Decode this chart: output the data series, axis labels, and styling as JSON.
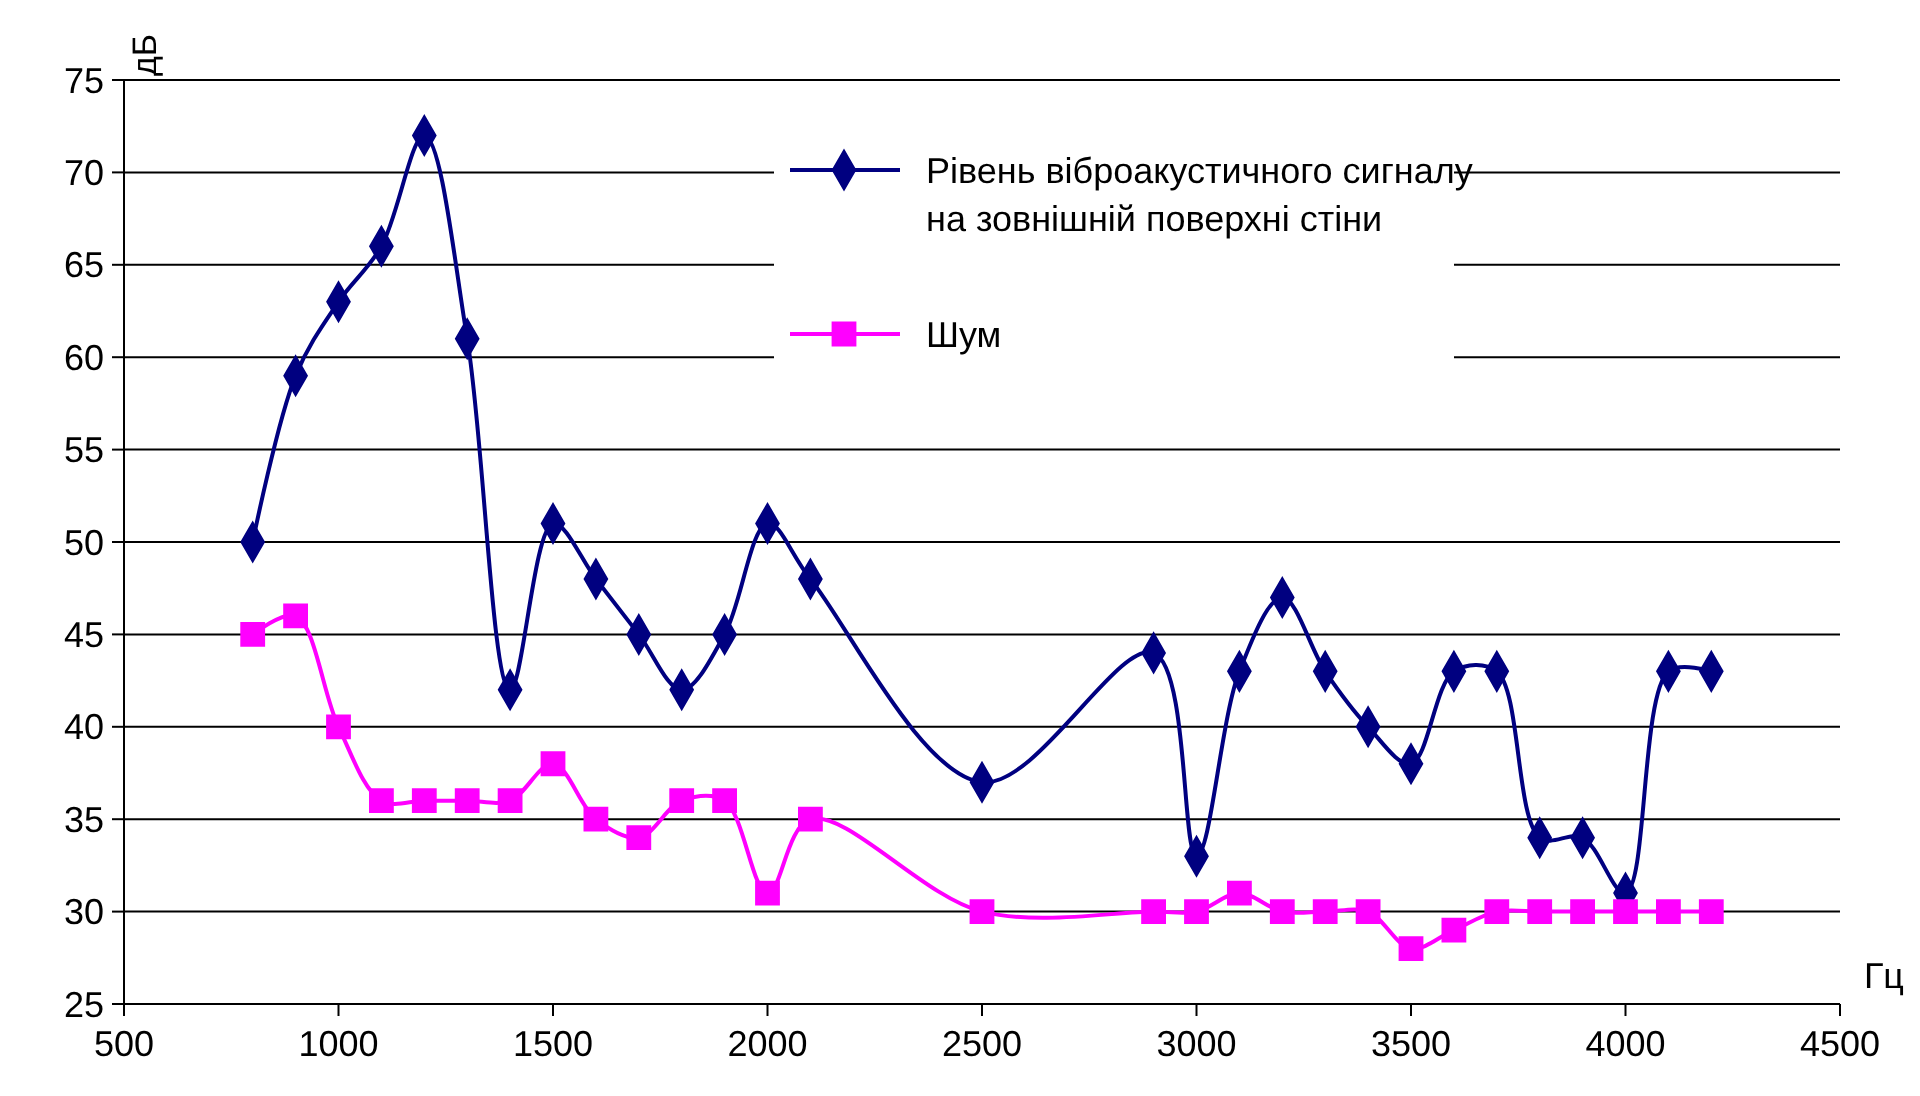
{
  "chart_data": {
    "type": "line",
    "ylabel": "дБ",
    "xlabel": "Гц",
    "xlim": [
      500,
      4500
    ],
    "xticks": [
      500,
      1000,
      1500,
      2000,
      2500,
      3000,
      3500,
      4000,
      4500
    ],
    "ylim": [
      25,
      75
    ],
    "yticks": [
      25,
      30,
      35,
      40,
      45,
      50,
      55,
      60,
      65,
      70,
      75
    ],
    "grid": "y",
    "legend": "top right",
    "series": [
      {
        "name": "Рівень віброакустичного сигналу на зовнішній поверхні стіни",
        "color": "#000080",
        "marker": "diamond",
        "x": [
          800,
          900,
          1000,
          1100,
          1200,
          1300,
          1400,
          1500,
          1600,
          1700,
          1800,
          1900,
          2000,
          2100,
          2500,
          2900,
          3000,
          3100,
          3200,
          3300,
          3400,
          3500,
          3600,
          3700,
          3800,
          3900,
          4000,
          4100,
          4200
        ],
        "values": [
          50,
          59,
          63,
          66,
          72,
          61,
          42,
          51,
          48,
          45,
          42,
          45,
          51,
          48,
          37,
          44,
          33,
          43,
          47,
          43,
          40,
          38,
          43,
          43,
          34,
          34,
          31,
          43,
          43
        ]
      },
      {
        "name": "Шум",
        "color": "#ff00ff",
        "marker": "square",
        "x": [
          800,
          900,
          1000,
          1100,
          1200,
          1300,
          1400,
          1500,
          1600,
          1700,
          1800,
          1900,
          2000,
          2100,
          2500,
          2900,
          3000,
          3100,
          3200,
          3300,
          3400,
          3500,
          3600,
          3700,
          3800,
          3900,
          4000,
          4100,
          4200
        ],
        "values": [
          45,
          46,
          40,
          36,
          36,
          36,
          36,
          38,
          35,
          34,
          36,
          36,
          31,
          35,
          30,
          30,
          30,
          31,
          30,
          30,
          30,
          28,
          29,
          30,
          30,
          30,
          30,
          30,
          30
        ]
      }
    ]
  }
}
